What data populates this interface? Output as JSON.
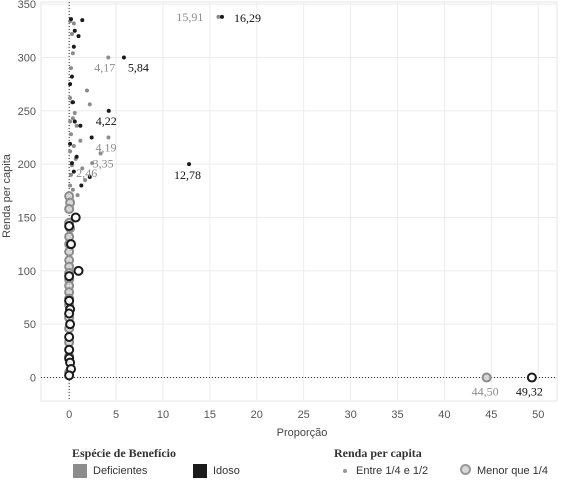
{
  "chart_data": {
    "type": "scatter",
    "xlabel": "Proporção",
    "ylabel": "Renda per capita",
    "xlim": [
      -3,
      52
    ],
    "ylim": [
      -22,
      352
    ],
    "xticks": [
      0,
      5,
      10,
      15,
      20,
      25,
      30,
      35,
      40,
      45,
      50
    ],
    "yticks": [
      0,
      50,
      100,
      150,
      200,
      250,
      300,
      350
    ],
    "grid": true,
    "reference_lines": {
      "x": 0,
      "y": 0,
      "style": "dotted"
    },
    "colors": {
      "Deficientes": "#8c8c8c",
      "Idoso": "#1a1a1a"
    },
    "legend": {
      "placement": "bottom",
      "color_title": "Espécie de Benefício",
      "color_items": [
        "Deficientes",
        "Idoso"
      ],
      "size_title": "Renda per capita",
      "size_items": [
        "Entre 1/4 e 1/2",
        "Menor que 1/4"
      ]
    },
    "series": [
      {
        "name": "Deficientes",
        "size": "Entre 1/4 e 1/2",
        "points": [
          {
            "x": 15.91,
            "y": 338,
            "label": "15,91"
          },
          {
            "x": 4.17,
            "y": 300,
            "label": "4,17"
          },
          {
            "x": 4.19,
            "y": 225,
            "label": "4,19"
          },
          {
            "x": 3.35,
            "y": 210,
            "label": "3,35"
          },
          {
            "x": 2.46,
            "y": 201,
            "label": "2,46"
          },
          {
            "x": 0.1,
            "y": 334
          },
          {
            "x": 0.5,
            "y": 332
          },
          {
            "x": 0.3,
            "y": 322
          },
          {
            "x": 0.4,
            "y": 304
          },
          {
            "x": 0.2,
            "y": 290
          },
          {
            "x": 1.9,
            "y": 269
          },
          {
            "x": 0.1,
            "y": 262
          },
          {
            "x": 0.3,
            "y": 258
          },
          {
            "x": 2.2,
            "y": 256
          },
          {
            "x": 0.6,
            "y": 248
          },
          {
            "x": 0.4,
            "y": 243
          },
          {
            "x": 0.1,
            "y": 240
          },
          {
            "x": 0.8,
            "y": 236
          },
          {
            "x": 0.2,
            "y": 228
          },
          {
            "x": 1.2,
            "y": 222
          },
          {
            "x": 0.5,
            "y": 217
          },
          {
            "x": 0.1,
            "y": 212
          },
          {
            "x": 0.7,
            "y": 205
          },
          {
            "x": 0.3,
            "y": 199
          },
          {
            "x": 1.4,
            "y": 196
          },
          {
            "x": 0.2,
            "y": 190
          },
          {
            "x": 1.7,
            "y": 185
          },
          {
            "x": 0.1,
            "y": 180
          },
          {
            "x": 0.4,
            "y": 176
          },
          {
            "x": 0.9,
            "y": 171
          }
        ]
      },
      {
        "name": "Idoso",
        "size": "Entre 1/4 e 1/2",
        "points": [
          {
            "x": 16.29,
            "y": 338,
            "label": "16,29"
          },
          {
            "x": 5.84,
            "y": 300,
            "label": "5,84"
          },
          {
            "x": 4.22,
            "y": 250,
            "label": "4,22"
          },
          {
            "x": 12.78,
            "y": 200,
            "label": "12,78"
          },
          {
            "x": 0.2,
            "y": 336
          },
          {
            "x": 1.4,
            "y": 335
          },
          {
            "x": 0.6,
            "y": 325
          },
          {
            "x": 1.0,
            "y": 320
          },
          {
            "x": 0.5,
            "y": 310
          },
          {
            "x": 0.3,
            "y": 282
          },
          {
            "x": 0.1,
            "y": 275
          },
          {
            "x": 0.4,
            "y": 258
          },
          {
            "x": 0.6,
            "y": 240
          },
          {
            "x": 1.2,
            "y": 236
          },
          {
            "x": 2.4,
            "y": 225
          },
          {
            "x": 0.1,
            "y": 219
          },
          {
            "x": 0.8,
            "y": 207
          },
          {
            "x": 0.3,
            "y": 201
          },
          {
            "x": 0.5,
            "y": 193
          },
          {
            "x": 2.2,
            "y": 188
          },
          {
            "x": 1.3,
            "y": 180
          }
        ]
      },
      {
        "name": "Deficientes",
        "size": "Menor que 1/4",
        "points": [
          {
            "x": 44.5,
            "y": 0,
            "label": "44,50"
          },
          {
            "x": 0.0,
            "y": 170
          },
          {
            "x": 0.1,
            "y": 164
          },
          {
            "x": 0.0,
            "y": 158
          },
          {
            "x": 0.0,
            "y": 145
          },
          {
            "x": 0.1,
            "y": 140
          },
          {
            "x": 0.0,
            "y": 132
          },
          {
            "x": 0.0,
            "y": 125
          },
          {
            "x": 0.0,
            "y": 118
          },
          {
            "x": 0.0,
            "y": 110
          },
          {
            "x": 0.0,
            "y": 104
          },
          {
            "x": 0.0,
            "y": 98
          },
          {
            "x": 0.0,
            "y": 92
          },
          {
            "x": 0.0,
            "y": 86
          },
          {
            "x": 0.0,
            "y": 80
          },
          {
            "x": 0.0,
            "y": 74
          },
          {
            "x": 0.0,
            "y": 68
          },
          {
            "x": 0.0,
            "y": 56
          },
          {
            "x": 0.0,
            "y": 46
          },
          {
            "x": 0.0,
            "y": 33
          },
          {
            "x": 0.0,
            "y": 20
          },
          {
            "x": 0.0,
            "y": 5
          }
        ]
      },
      {
        "name": "Idoso",
        "size": "Menor que 1/4",
        "points": [
          {
            "x": 49.32,
            "y": 0,
            "label": "49,32"
          },
          {
            "x": 0.7,
            "y": 150
          },
          {
            "x": 0.0,
            "y": 142
          },
          {
            "x": 0.2,
            "y": 125
          },
          {
            "x": 1.0,
            "y": 100
          },
          {
            "x": 0.0,
            "y": 95
          },
          {
            "x": 0.0,
            "y": 72
          },
          {
            "x": 0.1,
            "y": 64
          },
          {
            "x": 0.0,
            "y": 60
          },
          {
            "x": 0.1,
            "y": 50
          },
          {
            "x": 0.0,
            "y": 38
          },
          {
            "x": 0.0,
            "y": 26
          },
          {
            "x": 0.0,
            "y": 18
          },
          {
            "x": 0.1,
            "y": 14
          },
          {
            "x": 0.2,
            "y": 8
          },
          {
            "x": 0.0,
            "y": 2
          }
        ]
      }
    ]
  }
}
